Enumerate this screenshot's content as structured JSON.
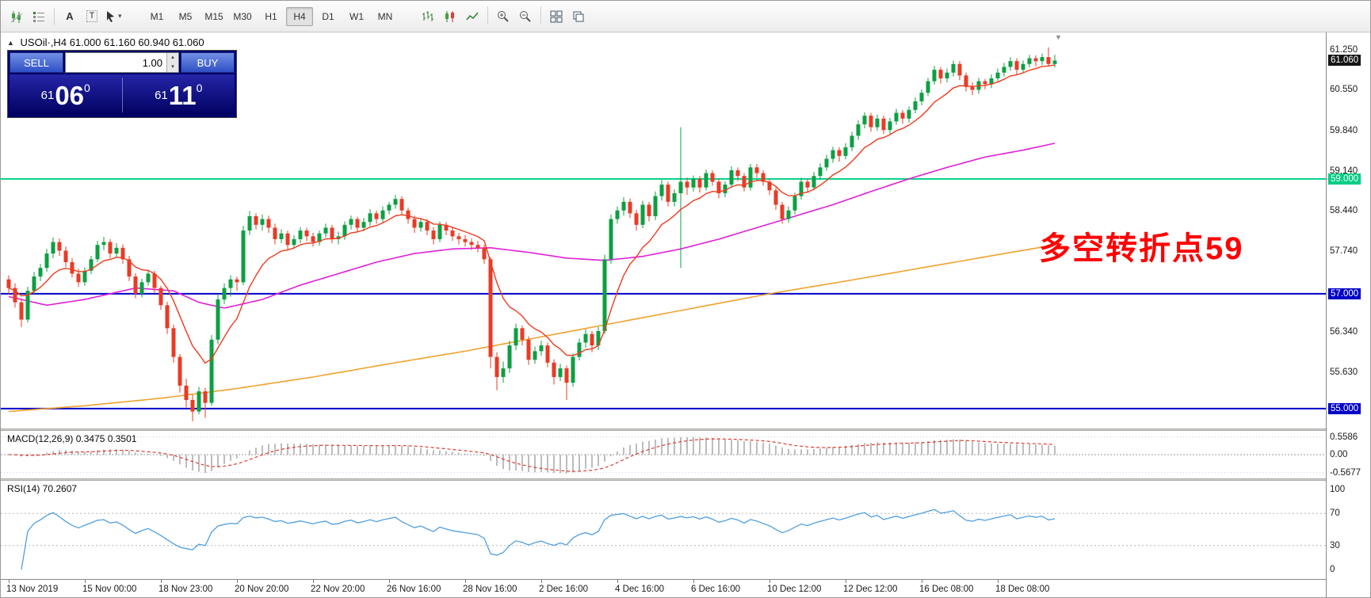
{
  "toolbar": {
    "timeframes": [
      "M1",
      "M5",
      "M15",
      "M30",
      "H1",
      "H4",
      "D1",
      "W1",
      "MN"
    ],
    "active_timeframe": "H4"
  },
  "icons": {
    "font": "A",
    "text": "T",
    "dropdown_caret": "▾",
    "collapse_arrow": "▲",
    "spinner_up": "▴",
    "spinner_down": "▾",
    "chart_shift": "▼"
  },
  "chart": {
    "title_symbol": "USOil·,H4",
    "title_ohlc": "61.000 61.160 60.940 61.060",
    "annotation": {
      "text": "多空转折点59",
      "color": "#ff0000"
    },
    "price_axis": {
      "labels": [
        {
          "text": "61.250",
          "price": 61.25,
          "type": "plain"
        },
        {
          "text": "61.060",
          "price": 61.06,
          "type": "current"
        },
        {
          "text": "60.550",
          "price": 60.55,
          "type": "plain"
        },
        {
          "text": "59.840",
          "price": 59.84,
          "type": "plain"
        },
        {
          "text": "59.140",
          "price": 59.14,
          "type": "plain"
        },
        {
          "text": "59.000",
          "price": 59.0,
          "type": "level-green"
        },
        {
          "text": "58.440",
          "price": 58.44,
          "type": "plain"
        },
        {
          "text": "57.740",
          "price": 57.74,
          "type": "plain"
        },
        {
          "text": "57.000",
          "price": 57.0,
          "type": "level-blue"
        },
        {
          "text": "56.340",
          "price": 56.34,
          "type": "plain"
        },
        {
          "text": "55.630",
          "price": 55.63,
          "type": "plain"
        },
        {
          "text": "55.000",
          "price": 55.0,
          "type": "level-blue"
        }
      ]
    }
  },
  "trade_panel": {
    "sell_label": "SELL",
    "buy_label": "BUY",
    "volume_value": "1.00",
    "bid_small": "61",
    "bid_big": "06",
    "bid_sup": "0",
    "ask_small": "61",
    "ask_big": "11",
    "ask_sup": "0"
  },
  "macd_panel": {
    "label": "MACD(12,26,9) 0.3475 0.3501",
    "axis": [
      {
        "text": "0.5586",
        "value": 0.5586
      },
      {
        "text": "0.00",
        "value": 0
      },
      {
        "text": "-0.5677",
        "value": -0.5677
      }
    ]
  },
  "rsi_panel": {
    "label": "RSI(14) 70.2607",
    "axis": [
      {
        "text": "100",
        "value": 100
      },
      {
        "text": "70",
        "value": 70
      },
      {
        "text": "30",
        "value": 30
      },
      {
        "text": "0",
        "value": 0
      }
    ]
  },
  "time_axis": {
    "labels": [
      {
        "bar": 0,
        "text": "13 Nov 2019"
      },
      {
        "bar": 12,
        "text": "15 Nov 00:00"
      },
      {
        "bar": 24,
        "text": "18 Nov 23:00"
      },
      {
        "bar": 36,
        "text": "20 Nov 20:00"
      },
      {
        "bar": 48,
        "text": "22 Nov 20:00"
      },
      {
        "bar": 60,
        "text": "26 Nov 16:00"
      },
      {
        "bar": 72,
        "text": "28 Nov 16:00"
      },
      {
        "bar": 84,
        "text": "2 Dec 16:00"
      },
      {
        "bar": 96,
        "text": "4 Dec 16:00"
      },
      {
        "bar": 108,
        "text": "6 Dec 16:00"
      },
      {
        "bar": 120,
        "text": "10 Dec 12:00"
      },
      {
        "bar": 132,
        "text": "12 Dec 12:00"
      },
      {
        "bar": 144,
        "text": "16 Dec 08:00"
      },
      {
        "bar": 156,
        "text": "18 Dec 08:00"
      }
    ]
  },
  "chart_data": {
    "type": "candlestick",
    "symbol": "USOil",
    "timeframe": "H4",
    "x_range": {
      "start": "13 Nov 2019",
      "end": "19 Dec 2019"
    },
    "price_range": [
      54.75,
      61.48
    ],
    "last_price": 61.06,
    "up_color": "#0d9f43",
    "down_color": "#e83b26",
    "levels": [
      {
        "price": 59.0,
        "color": "#00d184",
        "label": "59.000"
      },
      {
        "price": 57.0,
        "color": "#0000c8",
        "label": "57.000"
      },
      {
        "price": 55.0,
        "color": "#0000c8",
        "label": "55.000"
      }
    ],
    "candles": [
      [
        57.25,
        57.32,
        56.98,
        57.1
      ],
      [
        57.1,
        57.18,
        56.76,
        56.85
      ],
      [
        56.85,
        56.92,
        56.42,
        56.55
      ],
      [
        56.55,
        57.12,
        56.5,
        57.05
      ],
      [
        57.05,
        57.38,
        56.98,
        57.3
      ],
      [
        57.3,
        57.52,
        57.22,
        57.45
      ],
      [
        57.45,
        57.78,
        57.38,
        57.7
      ],
      [
        57.7,
        57.98,
        57.62,
        57.9
      ],
      [
        57.9,
        57.96,
        57.66,
        57.75
      ],
      [
        57.75,
        57.82,
        57.46,
        57.55
      ],
      [
        57.55,
        57.62,
        57.28,
        57.35
      ],
      [
        57.35,
        57.44,
        57.12,
        57.2
      ],
      [
        57.2,
        57.46,
        57.14,
        57.4
      ],
      [
        57.4,
        57.66,
        57.34,
        57.6
      ],
      [
        57.6,
        57.92,
        57.55,
        57.85
      ],
      [
        57.85,
        57.99,
        57.76,
        57.9
      ],
      [
        57.9,
        57.95,
        57.62,
        57.7
      ],
      [
        57.7,
        57.88,
        57.63,
        57.8
      ],
      [
        57.8,
        57.86,
        57.52,
        57.6
      ],
      [
        57.6,
        57.66,
        57.22,
        57.3
      ],
      [
        57.3,
        57.36,
        56.92,
        57.0
      ],
      [
        57.0,
        57.26,
        56.94,
        57.2
      ],
      [
        57.2,
        57.42,
        57.14,
        57.35
      ],
      [
        57.35,
        57.4,
        57.02,
        57.1
      ],
      [
        57.1,
        57.14,
        56.72,
        56.8
      ],
      [
        56.8,
        56.86,
        56.3,
        56.4
      ],
      [
        56.4,
        56.46,
        55.8,
        55.9
      ],
      [
        55.9,
        55.95,
        55.28,
        55.4
      ],
      [
        55.4,
        55.52,
        55.02,
        55.15
      ],
      [
        55.15,
        55.24,
        54.78,
        54.95
      ],
      [
        54.95,
        55.38,
        54.9,
        55.3
      ],
      [
        55.3,
        55.36,
        54.84,
        55.1
      ],
      [
        55.1,
        56.28,
        55.05,
        56.2
      ],
      [
        56.2,
        56.98,
        56.12,
        56.9
      ],
      [
        56.9,
        57.18,
        56.82,
        57.1
      ],
      [
        57.1,
        57.32,
        56.95,
        57.25
      ],
      [
        57.25,
        57.3,
        57.05,
        57.2
      ],
      [
        57.2,
        58.18,
        57.15,
        58.1
      ],
      [
        58.1,
        58.44,
        58.02,
        58.35
      ],
      [
        58.35,
        58.4,
        58.12,
        58.2
      ],
      [
        58.2,
        58.38,
        58.1,
        58.3
      ],
      [
        58.3,
        58.36,
        58.06,
        58.15
      ],
      [
        58.15,
        58.22,
        57.86,
        57.95
      ],
      [
        57.95,
        58.12,
        57.88,
        58.05
      ],
      [
        58.05,
        58.1,
        57.76,
        57.85
      ],
      [
        57.85,
        58.02,
        57.78,
        57.95
      ],
      [
        57.95,
        58.16,
        57.88,
        58.1
      ],
      [
        58.1,
        58.15,
        57.92,
        58.0
      ],
      [
        58.0,
        58.06,
        57.82,
        57.9
      ],
      [
        57.9,
        58.1,
        57.84,
        58.05
      ],
      [
        58.05,
        58.22,
        57.98,
        58.15
      ],
      [
        58.15,
        58.2,
        57.88,
        57.95
      ],
      [
        57.95,
        58.08,
        57.86,
        58.0
      ],
      [
        58.0,
        58.26,
        57.94,
        58.2
      ],
      [
        58.2,
        58.36,
        58.12,
        58.3
      ],
      [
        58.3,
        58.34,
        58.08,
        58.15
      ],
      [
        58.15,
        58.32,
        58.09,
        58.25
      ],
      [
        58.25,
        58.47,
        58.18,
        58.4
      ],
      [
        58.4,
        58.45,
        58.22,
        58.3
      ],
      [
        58.3,
        58.52,
        58.24,
        58.45
      ],
      [
        58.45,
        58.6,
        58.38,
        58.55
      ],
      [
        58.55,
        58.72,
        58.48,
        58.65
      ],
      [
        58.65,
        58.7,
        58.38,
        58.45
      ],
      [
        58.45,
        58.5,
        58.22,
        58.3
      ],
      [
        58.3,
        58.36,
        58.06,
        58.15
      ],
      [
        58.15,
        58.32,
        58.08,
        58.25
      ],
      [
        58.25,
        58.3,
        58.02,
        58.1
      ],
      [
        58.1,
        58.16,
        57.86,
        57.95
      ],
      [
        57.95,
        58.26,
        57.9,
        58.2
      ],
      [
        58.2,
        58.25,
        58.02,
        58.1
      ],
      [
        58.1,
        58.16,
        57.92,
        58.0
      ],
      [
        58.0,
        58.06,
        57.86,
        57.95
      ],
      [
        57.95,
        58.02,
        57.82,
        57.9
      ],
      [
        57.9,
        57.96,
        57.76,
        57.85
      ],
      [
        57.85,
        57.92,
        57.72,
        57.8
      ],
      [
        57.8,
        57.85,
        57.52,
        57.6
      ],
      [
        57.6,
        57.64,
        55.7,
        55.9
      ],
      [
        55.9,
        55.98,
        55.32,
        55.55
      ],
      [
        55.55,
        55.82,
        55.45,
        55.7
      ],
      [
        55.7,
        56.18,
        55.62,
        56.1
      ],
      [
        56.1,
        56.48,
        56.02,
        56.4
      ],
      [
        56.4,
        56.45,
        56.1,
        56.2
      ],
      [
        56.2,
        56.26,
        55.76,
        55.85
      ],
      [
        55.85,
        56.08,
        55.78,
        56.0
      ],
      [
        56.0,
        56.18,
        55.92,
        56.1
      ],
      [
        56.1,
        56.15,
        55.72,
        55.8
      ],
      [
        55.8,
        55.86,
        55.42,
        55.55
      ],
      [
        55.55,
        55.78,
        55.48,
        55.7
      ],
      [
        55.7,
        55.75,
        55.15,
        55.45
      ],
      [
        55.45,
        55.96,
        55.38,
        55.9
      ],
      [
        55.9,
        56.22,
        55.84,
        56.15
      ],
      [
        56.15,
        56.38,
        56.06,
        56.3
      ],
      [
        56.3,
        56.35,
        55.98,
        56.1
      ],
      [
        56.1,
        56.42,
        56.02,
        56.35
      ],
      [
        56.35,
        57.68,
        56.3,
        57.6
      ],
      [
        57.6,
        58.38,
        57.52,
        58.3
      ],
      [
        58.3,
        58.52,
        58.22,
        58.45
      ],
      [
        58.45,
        58.68,
        58.36,
        58.6
      ],
      [
        58.6,
        58.66,
        58.32,
        58.4
      ],
      [
        58.4,
        58.46,
        58.1,
        58.2
      ],
      [
        58.2,
        58.62,
        58.14,
        58.55
      ],
      [
        58.55,
        58.6,
        58.26,
        58.35
      ],
      [
        58.35,
        58.78,
        58.28,
        58.7
      ],
      [
        58.7,
        58.98,
        58.62,
        58.9
      ],
      [
        58.9,
        58.95,
        58.52,
        58.6
      ],
      [
        58.6,
        58.82,
        58.52,
        58.75
      ],
      [
        58.75,
        59.9,
        57.45,
        58.95
      ],
      [
        58.95,
        59.02,
        58.72,
        58.85
      ],
      [
        58.85,
        59.06,
        58.78,
        59.0
      ],
      [
        59.0,
        59.05,
        58.76,
        58.85
      ],
      [
        58.85,
        59.16,
        58.8,
        59.1
      ],
      [
        59.1,
        59.15,
        58.88,
        58.95
      ],
      [
        58.95,
        59.0,
        58.66,
        58.75
      ],
      [
        58.75,
        58.96,
        58.68,
        58.9
      ],
      [
        58.9,
        59.22,
        58.84,
        59.15
      ],
      [
        59.15,
        59.2,
        58.96,
        59.05
      ],
      [
        59.05,
        59.1,
        58.78,
        58.85
      ],
      [
        58.85,
        59.26,
        58.8,
        59.2
      ],
      [
        59.2,
        59.26,
        59.02,
        59.1
      ],
      [
        59.1,
        59.15,
        58.88,
        58.95
      ],
      [
        58.95,
        59.0,
        58.72,
        58.8
      ],
      [
        58.8,
        58.85,
        58.46,
        58.55
      ],
      [
        58.55,
        58.6,
        58.22,
        58.3
      ],
      [
        58.3,
        58.52,
        58.24,
        58.45
      ],
      [
        58.45,
        58.76,
        58.38,
        58.7
      ],
      [
        58.7,
        59.02,
        58.64,
        58.95
      ],
      [
        58.95,
        59.0,
        58.76,
        58.85
      ],
      [
        58.85,
        59.12,
        58.8,
        59.05
      ],
      [
        59.05,
        59.27,
        58.98,
        59.2
      ],
      [
        59.2,
        59.42,
        59.14,
        59.35
      ],
      [
        59.35,
        59.56,
        59.28,
        59.5
      ],
      [
        59.5,
        59.55,
        59.3,
        59.4
      ],
      [
        59.4,
        59.62,
        59.34,
        59.55
      ],
      [
        59.55,
        59.82,
        59.48,
        59.75
      ],
      [
        59.75,
        60.02,
        59.68,
        59.95
      ],
      [
        59.95,
        60.16,
        59.88,
        60.1
      ],
      [
        60.1,
        60.15,
        59.82,
        59.9
      ],
      [
        59.9,
        60.12,
        59.84,
        60.05
      ],
      [
        60.05,
        60.1,
        59.78,
        59.85
      ],
      [
        59.85,
        60.06,
        59.78,
        60.0
      ],
      [
        60.0,
        60.22,
        59.94,
        60.15
      ],
      [
        60.15,
        60.2,
        59.96,
        60.05
      ],
      [
        60.05,
        60.26,
        59.98,
        60.2
      ],
      [
        60.2,
        60.42,
        60.14,
        60.35
      ],
      [
        60.35,
        60.56,
        60.28,
        60.5
      ],
      [
        60.5,
        60.76,
        60.44,
        60.7
      ],
      [
        60.7,
        60.97,
        60.64,
        60.9
      ],
      [
        60.9,
        60.95,
        60.66,
        60.75
      ],
      [
        60.75,
        60.92,
        60.68,
        60.85
      ],
      [
        60.85,
        61.06,
        60.78,
        61.0
      ],
      [
        61.0,
        61.05,
        60.72,
        60.8
      ],
      [
        60.8,
        60.85,
        60.52,
        60.6
      ],
      [
        60.6,
        60.68,
        60.46,
        60.55
      ],
      [
        60.55,
        60.76,
        60.48,
        60.7
      ],
      [
        60.7,
        60.74,
        60.56,
        60.65
      ],
      [
        60.65,
        60.82,
        60.58,
        60.75
      ],
      [
        60.75,
        60.92,
        60.7,
        60.85
      ],
      [
        60.85,
        61.02,
        60.78,
        60.95
      ],
      [
        60.95,
        61.12,
        60.88,
        61.05
      ],
      [
        61.05,
        61.1,
        60.82,
        60.9
      ],
      [
        60.9,
        61.06,
        60.84,
        61.0
      ],
      [
        61.0,
        61.16,
        60.94,
        61.1
      ],
      [
        61.1,
        61.15,
        60.96,
        61.05
      ],
      [
        61.05,
        61.18,
        60.98,
        61.12
      ],
      [
        61.12,
        61.29,
        60.96,
        61.0
      ],
      [
        61.0,
        61.16,
        60.94,
        61.06
      ]
    ],
    "moving_averages": [
      {
        "name": "fast-ma",
        "color": "#f03a1e",
        "type": "ema",
        "period": 10
      },
      {
        "name": "mid-ma",
        "color": "#e020d8",
        "points": [
          [
            0,
            56.95
          ],
          [
            6,
            56.8
          ],
          [
            12,
            56.9
          ],
          [
            20,
            57.1
          ],
          [
            26,
            57.05
          ],
          [
            30,
            56.85
          ],
          [
            34,
            56.75
          ],
          [
            40,
            56.9
          ],
          [
            46,
            57.15
          ],
          [
            52,
            57.35
          ],
          [
            58,
            57.55
          ],
          [
            64,
            57.7
          ],
          [
            70,
            57.78
          ],
          [
            76,
            57.8
          ],
          [
            82,
            57.72
          ],
          [
            88,
            57.62
          ],
          [
            94,
            57.58
          ],
          [
            100,
            57.65
          ],
          [
            106,
            57.78
          ],
          [
            112,
            57.95
          ],
          [
            118,
            58.15
          ],
          [
            124,
            58.35
          ],
          [
            130,
            58.55
          ],
          [
            136,
            58.78
          ],
          [
            142,
            59.0
          ],
          [
            148,
            59.2
          ],
          [
            154,
            59.38
          ],
          [
            160,
            59.5
          ],
          [
            165,
            59.62
          ]
        ]
      },
      {
        "name": "slow-ma",
        "color": "#f0a22e",
        "points": [
          [
            0,
            54.95
          ],
          [
            12,
            55.05
          ],
          [
            24,
            55.18
          ],
          [
            36,
            55.35
          ],
          [
            48,
            55.55
          ],
          [
            60,
            55.78
          ],
          [
            72,
            56.0
          ],
          [
            84,
            56.25
          ],
          [
            96,
            56.5
          ],
          [
            108,
            56.75
          ],
          [
            120,
            57.0
          ],
          [
            132,
            57.22
          ],
          [
            144,
            57.45
          ],
          [
            156,
            57.68
          ],
          [
            165,
            57.85
          ]
        ]
      }
    ],
    "macd": {
      "params": "12,26,9",
      "value": 0.3475,
      "signal_value": 0.3501,
      "axis_max": 0.5586,
      "axis_min": -0.5677,
      "histogram_color": "#bdbdbd",
      "signal_color": "#e03a2f"
    },
    "rsi": {
      "period": 14,
      "value": 70.2607,
      "levels": [
        70,
        30
      ],
      "color": "#4f9fe0"
    }
  }
}
